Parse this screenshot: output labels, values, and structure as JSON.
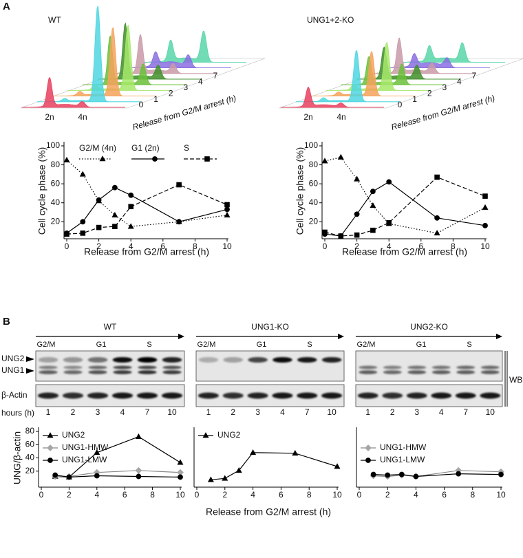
{
  "panel_labels": [
    "A",
    "B"
  ],
  "histograms": [
    {
      "title": "WT",
      "ploidy_labels": [
        "2n",
        "4n"
      ],
      "time_labels": [
        0,
        1,
        2,
        3,
        4,
        7
      ],
      "axis_label": "Release from G2/M arrest (h)"
    },
    {
      "title": "UNG1+2-KO",
      "ploidy_labels": [
        "2n",
        "4n"
      ],
      "time_labels": [
        0,
        1,
        2,
        3,
        4,
        7
      ],
      "axis_label": "Release from G2/M arrest (h)"
    }
  ],
  "blots": {
    "row_labels": [
      "UNG2",
      "UNG1",
      "β-Actin"
    ],
    "method_label": "WB",
    "lane_axis_label": "hours (h)",
    "panels": [
      {
        "title": "WT",
        "phase_labels": [
          "G2/M",
          "G1",
          "S"
        ],
        "lanes": [
          1,
          2,
          3,
          4,
          7,
          10
        ]
      },
      {
        "title": "UNG1-KO",
        "phase_labels": [
          "G2/M",
          "G1",
          "S"
        ],
        "lanes": [
          1,
          2,
          3,
          4,
          7,
          10
        ]
      },
      {
        "title": "UNG2-KO",
        "phase_labels": [
          "G2/M",
          "G1",
          "S"
        ],
        "lanes": [
          1,
          2,
          3,
          4,
          7,
          10
        ]
      }
    ]
  },
  "chart_data": [
    {
      "type": "line",
      "ylabel": "Cell cycle phase (%)",
      "xlabel": "Release from G2/M arrest (h)",
      "x": [
        0,
        1,
        2,
        3,
        4,
        7,
        10
      ],
      "xlim": [
        0,
        10
      ],
      "xticks": [
        0,
        2,
        4,
        6,
        8,
        10
      ],
      "ylim": [
        5,
        100
      ],
      "yticks": [
        20,
        40,
        60,
        80,
        100
      ],
      "legend": "top",
      "series": [
        {
          "name": "G2/M (4n)",
          "color": "#000000",
          "dash": "dotted",
          "marker": "triangle",
          "values": [
            85,
            70,
            42,
            27,
            15,
            20,
            27
          ]
        },
        {
          "name": "G1 (2n)",
          "color": "#000000",
          "dash": "solid",
          "marker": "circle",
          "values": [
            8,
            20,
            43,
            56,
            48,
            20,
            33
          ]
        },
        {
          "name": "S",
          "color": "#000000",
          "dash": "dashed",
          "marker": "square",
          "values": [
            7,
            8,
            14,
            15,
            36,
            59,
            38
          ]
        }
      ]
    },
    {
      "type": "line",
      "ylabel": "Cell cycle phase (%)",
      "xlabel": "Release from G2/M arrest (h)",
      "x": [
        0,
        1,
        2,
        3,
        4,
        7,
        10
      ],
      "xlim": [
        0,
        10
      ],
      "xticks": [
        0,
        2,
        4,
        6,
        8,
        10
      ],
      "ylim": [
        5,
        100
      ],
      "yticks": [
        20,
        40,
        60,
        80,
        100
      ],
      "series": [
        {
          "color": "#000000",
          "dash": "dotted",
          "marker": "triangle",
          "values": [
            84,
            88,
            65,
            37,
            18,
            8,
            35
          ]
        },
        {
          "color": "#000000",
          "dash": "solid",
          "marker": "circle",
          "values": [
            7,
            5,
            28,
            52,
            62,
            24,
            16
          ]
        },
        {
          "color": "#000000",
          "dash": "dashed",
          "marker": "square",
          "values": [
            9,
            5,
            6,
            11,
            19,
            67,
            47
          ]
        }
      ]
    },
    {
      "type": "line",
      "ylabel": "UNG/β-actin",
      "x": [
        1,
        2,
        4,
        7,
        10
      ],
      "xlim": [
        0,
        10
      ],
      "xticks": [
        0,
        2,
        4,
        6,
        8,
        10
      ],
      "ylim": [
        0,
        80
      ],
      "yticks": [
        20,
        40,
        60,
        80
      ],
      "legend": "upper left",
      "series": [
        {
          "name": "UNG2",
          "color": "#000000",
          "dash": "solid",
          "marker": "triangle",
          "values": [
            12,
            11,
            48,
            72,
            33
          ]
        },
        {
          "name": "UNG1-HMW",
          "color": "#888888",
          "marker_color": "#a6a6a6",
          "dash": "solid",
          "marker": "diamond",
          "values": [
            12,
            12,
            18,
            21,
            18
          ]
        },
        {
          "name": "UNG1-LMW",
          "color": "#000000",
          "dash": "solid",
          "marker": "circle",
          "values": [
            14,
            11,
            13,
            12,
            11
          ]
        }
      ]
    },
    {
      "type": "line",
      "xlabel": "Release from G2/M arrest (h)",
      "x": [
        1,
        2,
        3,
        4,
        7,
        10
      ],
      "xlim": [
        0,
        10
      ],
      "xticks": [
        0,
        2,
        4,
        6,
        8,
        10
      ],
      "ylim": [
        0,
        80
      ],
      "legend": "upper left",
      "series": [
        {
          "name": "UNG2",
          "color": "#000000",
          "dash": "solid",
          "marker": "triangle",
          "values": [
            7,
            9,
            21,
            48,
            47,
            27
          ]
        }
      ]
    },
    {
      "type": "line",
      "x": [
        1,
        2,
        3,
        4,
        7,
        10
      ],
      "xlim": [
        0,
        10
      ],
      "xticks": [
        0,
        2,
        4,
        6,
        8,
        10
      ],
      "ylim": [
        0,
        80
      ],
      "legend": "center left",
      "series": [
        {
          "name": "UNG1-HMW",
          "color": "#888888",
          "marker_color": "#a6a6a6",
          "dash": "solid",
          "marker": "diamond",
          "values": [
            13,
            12,
            14,
            12,
            21,
            19
          ]
        },
        {
          "name": "UNG1-LMW",
          "color": "#000000",
          "dash": "solid",
          "marker": "circle",
          "values": [
            15,
            14,
            15,
            12,
            16,
            15
          ]
        }
      ]
    }
  ]
}
